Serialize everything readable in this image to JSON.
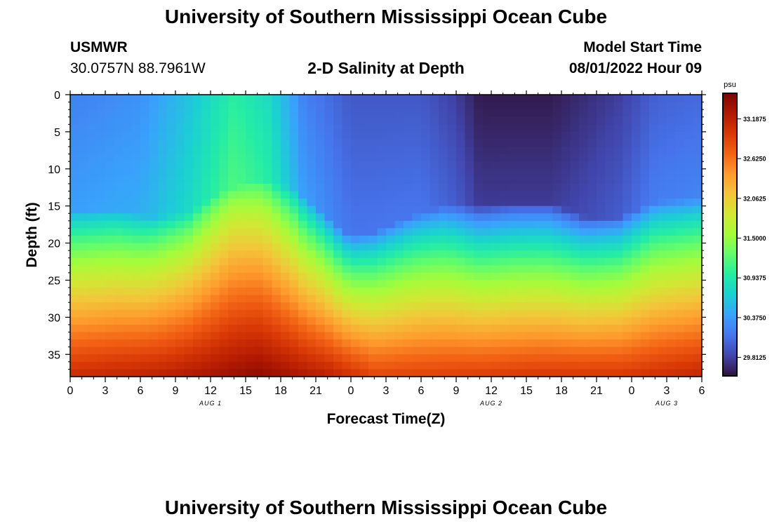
{
  "page": {
    "title": "University of Southern Mississippi Ocean Cube",
    "footer_title": "University of Southern Mississippi Ocean Cube",
    "station": "USMWR",
    "coords": "30.0757N  88.7961W",
    "plot_title": "2-D Salinity at Depth",
    "model_start_label": "Model Start Time",
    "model_start_value": "08/01/2022 Hour 09"
  },
  "colors": {
    "colormap": [
      "#30123b",
      "#4145ab",
      "#4675ed",
      "#39a2fc",
      "#1bcfd4",
      "#24eca6",
      "#61fc6c",
      "#a4fc3b",
      "#d1e834",
      "#f3c63a",
      "#fe9b2d",
      "#f36315",
      "#d93806",
      "#b11901",
      "#7a0402"
    ]
  },
  "chart_data": {
    "type": "heatmap",
    "title": "2-D Salinity at Depth",
    "xlabel": "Forecast Time(Z)",
    "ylabel": "Depth (ft)",
    "x_ticks": [
      "0",
      "3",
      "6",
      "9",
      "12",
      "15",
      "18",
      "21",
      "0",
      "3",
      "6",
      "9",
      "12",
      "15",
      "18",
      "21",
      "0",
      "3",
      "6"
    ],
    "date_labels": [
      {
        "label": "AUG 1",
        "hour_index": 12
      },
      {
        "label": "AUG 2",
        "hour_index": 36
      },
      {
        "label": "AUG 3",
        "hour_index": 51
      }
    ],
    "x_range_hours": [
      0,
      54
    ],
    "y_ticks": [
      "0",
      "5",
      "10",
      "15",
      "20",
      "25",
      "30",
      "35"
    ],
    "ylim_ft": [
      0,
      38
    ],
    "colorbar": {
      "unit": "psu",
      "range": [
        29.55,
        33.55
      ],
      "tick_labels": [
        "33.1875",
        "32.6250",
        "32.0625",
        "31.5000",
        "30.9375",
        "30.3750",
        "29.8125"
      ],
      "tick_values": [
        33.1875,
        32.625,
        32.0625,
        31.5,
        30.9375,
        30.375,
        29.8125
      ]
    },
    "interface_depth_ft_by_hour": [
      {
        "hour": 0,
        "depth": 18.5
      },
      {
        "hour": 4,
        "depth": 18.5
      },
      {
        "hour": 7,
        "depth": 19.5
      },
      {
        "hour": 10,
        "depth": 19.0
      },
      {
        "hour": 13,
        "depth": 16.0
      },
      {
        "hour": 16,
        "depth": 14.5
      },
      {
        "hour": 19,
        "depth": 15.5
      },
      {
        "hour": 21,
        "depth": 18.0
      },
      {
        "hour": 23,
        "depth": 21.0
      },
      {
        "hour": 24,
        "depth": 22.0
      },
      {
        "hour": 26,
        "depth": 21.5
      },
      {
        "hour": 29,
        "depth": 19.5
      },
      {
        "hour": 32,
        "depth": 18.0
      },
      {
        "hour": 35,
        "depth": 18.0
      },
      {
        "hour": 38,
        "depth": 17.5
      },
      {
        "hour": 41,
        "depth": 17.5
      },
      {
        "hour": 44,
        "depth": 19.5
      },
      {
        "hour": 47,
        "depth": 19.5
      },
      {
        "hour": 50,
        "depth": 17.5
      },
      {
        "hour": 54,
        "depth": 17.0
      }
    ],
    "surface_salinity_psu_by_hour": [
      {
        "hour": 0,
        "value": 30.2
      },
      {
        "hour": 6,
        "value": 30.3
      },
      {
        "hour": 10,
        "value": 30.6
      },
      {
        "hour": 14,
        "value": 31.0
      },
      {
        "hour": 17,
        "value": 30.8
      },
      {
        "hour": 20,
        "value": 30.2
      },
      {
        "hour": 24,
        "value": 29.95
      },
      {
        "hour": 30,
        "value": 29.95
      },
      {
        "hour": 33,
        "value": 29.8
      },
      {
        "hour": 35,
        "value": 29.6
      },
      {
        "hour": 41,
        "value": 29.6
      },
      {
        "hour": 47,
        "value": 29.8
      },
      {
        "hour": 50,
        "value": 30.0
      },
      {
        "hour": 54,
        "value": 30.05
      }
    ],
    "bottom_salinity_psu_by_hour": [
      {
        "hour": 0,
        "value": 33.1
      },
      {
        "hour": 8,
        "value": 33.2
      },
      {
        "hour": 16,
        "value": 33.45
      },
      {
        "hour": 22,
        "value": 33.2
      },
      {
        "hour": 26,
        "value": 32.9
      },
      {
        "hour": 34,
        "value": 32.95
      },
      {
        "hour": 40,
        "value": 33.0
      },
      {
        "hour": 47,
        "value": 33.0
      },
      {
        "hour": 54,
        "value": 33.15
      }
    ]
  }
}
